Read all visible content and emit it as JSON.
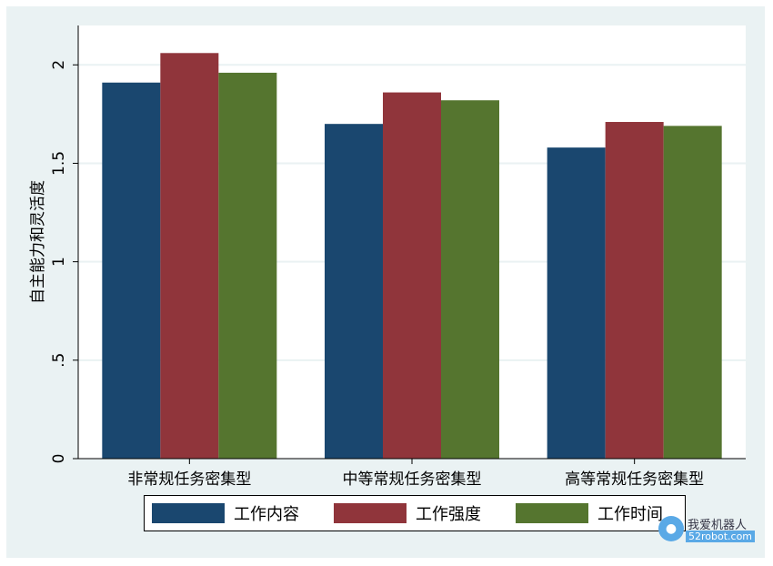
{
  "chart_data": {
    "type": "bar",
    "title": "",
    "xlabel": "",
    "ylabel": "自主能力和灵活度",
    "ylim": [
      0,
      2.2
    ],
    "yticks": [
      {
        "value": 0,
        "label": "0"
      },
      {
        "value": 0.5,
        "label": ".5"
      },
      {
        "value": 1,
        "label": "1"
      },
      {
        "value": 1.5,
        "label": "1.5"
      },
      {
        "value": 2,
        "label": "2"
      }
    ],
    "grid": true,
    "legend_position": "bottom",
    "categories": [
      "非常规任务密集型",
      "中等常规任务密集型",
      "高等常规任务密集型"
    ],
    "series": [
      {
        "name": "工作内容",
        "color": "#1a476f",
        "values": [
          1.91,
          1.7,
          1.58
        ]
      },
      {
        "name": "工作强度",
        "color": "#90353b",
        "values": [
          2.06,
          1.86,
          1.71
        ]
      },
      {
        "name": "工作时间",
        "color": "#55752f",
        "values": [
          1.96,
          1.82,
          1.69
        ]
      }
    ]
  },
  "colors": {
    "frame_background": "#eaf2f3",
    "plot_background": "#ffffff",
    "grid": "#eaf2f3"
  },
  "watermark": {
    "logo_icon": "robot-logo-icon",
    "text": "我爱机器人",
    "url": "52robot.com"
  }
}
